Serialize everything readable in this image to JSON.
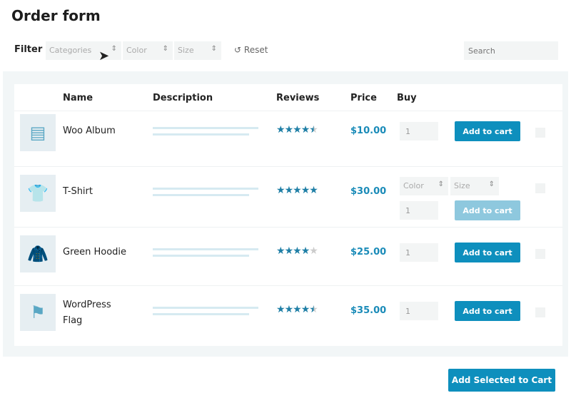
{
  "title": "Order form",
  "filter": {
    "label": "Filter",
    "categories": "Categories",
    "color": "Color",
    "size": "Size",
    "reset": "Reset",
    "search_placeholder": "Search"
  },
  "columns": {
    "name": "Name",
    "description": "Description",
    "reviews": "Reviews",
    "price": "Price",
    "buy": "Buy"
  },
  "products": [
    {
      "name": "Woo Album",
      "rating": 4.5,
      "price": "$10.00",
      "qty": "1",
      "button": "Add to cart",
      "icon": "album-icon"
    },
    {
      "name": "T-Shirt",
      "rating": 5,
      "price": "$30.00",
      "qty": "1",
      "button": "Add to cart",
      "color": "Color",
      "size": "Size",
      "icon": "tshirt-icon"
    },
    {
      "name": "Green Hoodie",
      "rating": 4,
      "price": "$25.00",
      "qty": "1",
      "button": "Add to cart",
      "icon": "hoodie-icon"
    },
    {
      "name": "WordPress Flag",
      "name_line1": "WordPress",
      "name_line2": "Flag",
      "rating": 4.5,
      "price": "$35.00",
      "qty": "1",
      "button": "Add to cart",
      "icon": "flag-icon"
    }
  ],
  "add_selected": "Add Selected to Cart",
  "colors": {
    "accent": "#0e8fbd",
    "star": "#1f7fa6"
  }
}
